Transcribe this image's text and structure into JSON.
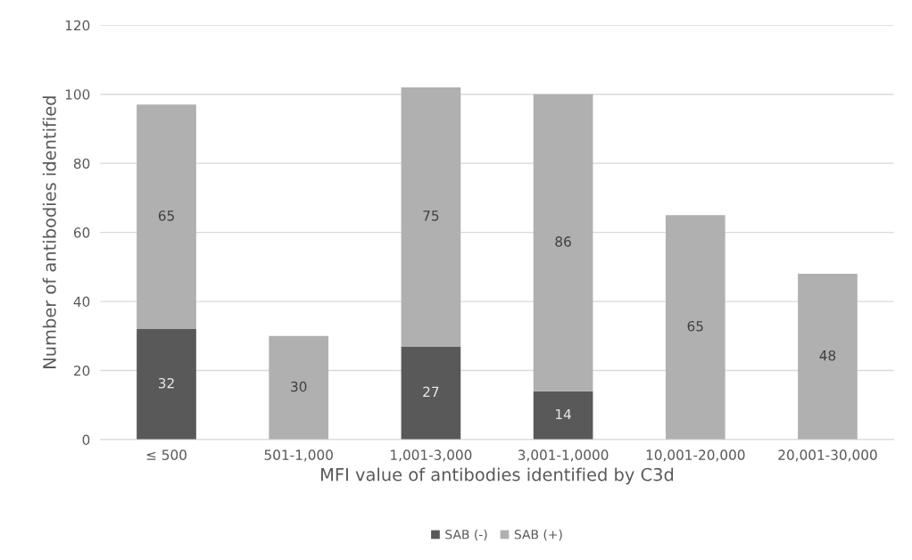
{
  "chart_data": {
    "type": "bar",
    "stacked": true,
    "xlabel": "MFI value of antibodies identified by C3d",
    "ylabel": "Number of antibodies identified",
    "categories": [
      "≤ 500",
      "501-1,000",
      "1,001-3,000",
      "3,001-1,0000",
      "10,001-20,000",
      "20,001-30,000"
    ],
    "series": [
      {
        "name": "SAB (-)",
        "color": "#595959",
        "values": [
          32,
          null,
          27,
          14,
          null,
          null
        ]
      },
      {
        "name": "SAB (+)",
        "color": "#b0b0b0",
        "values": [
          65,
          30,
          75,
          86,
          65,
          48
        ]
      }
    ],
    "ylim": [
      0,
      120
    ],
    "yticks": [
      0,
      20,
      40,
      60,
      80,
      100,
      120
    ],
    "grid": "y",
    "legend": "bottom",
    "data_labels": true
  }
}
